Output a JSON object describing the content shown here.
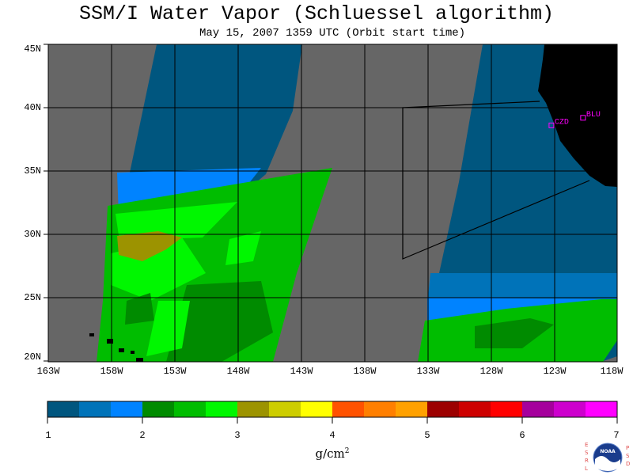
{
  "title": "SSM/I Water Vapor (Schluessel algorithm)",
  "subtitle": "May 15, 2007  1359 UTC  (Orbit start time)",
  "map": {
    "lat_labels": [
      "45N",
      "40N",
      "35N",
      "30N",
      "25N",
      "20N"
    ],
    "lon_labels": [
      "163W",
      "158W",
      "153W",
      "148W",
      "143W",
      "138W",
      "133W",
      "128W",
      "123W",
      "118W"
    ],
    "lat_range": [
      20,
      45
    ],
    "lon_range": [
      -163,
      -118
    ],
    "stations": [
      {
        "label": "CZD",
        "lat": 38.6,
        "lon": -123.2
      },
      {
        "label": "BLU",
        "lat": 39.2,
        "lon": -120.7
      }
    ],
    "colors": {
      "no_data": "#666666",
      "land": "#000000",
      "station": "#ff00ff",
      "gridline": "#000000"
    }
  },
  "colorbar": {
    "tick_labels": [
      "1",
      "2",
      "3",
      "4",
      "5",
      "6",
      "7"
    ],
    "unit": "g/cm",
    "unit_exponent": "2",
    "colors": [
      "#00567f",
      "#0073b9",
      "#0083ff",
      "#008b00",
      "#00bd00",
      "#00f700",
      "#9c9300",
      "#cdcd00",
      "#ffff00",
      "#ff5200",
      "#ff7f00",
      "#ffa100",
      "#9c0000",
      "#cd0000",
      "#ff0000",
      "#a5009c",
      "#cd00cd",
      "#ff00ff"
    ]
  },
  "logo": {
    "left_letters": "ESRL",
    "right_letters": "PSD",
    "center_text": "NOAA"
  }
}
